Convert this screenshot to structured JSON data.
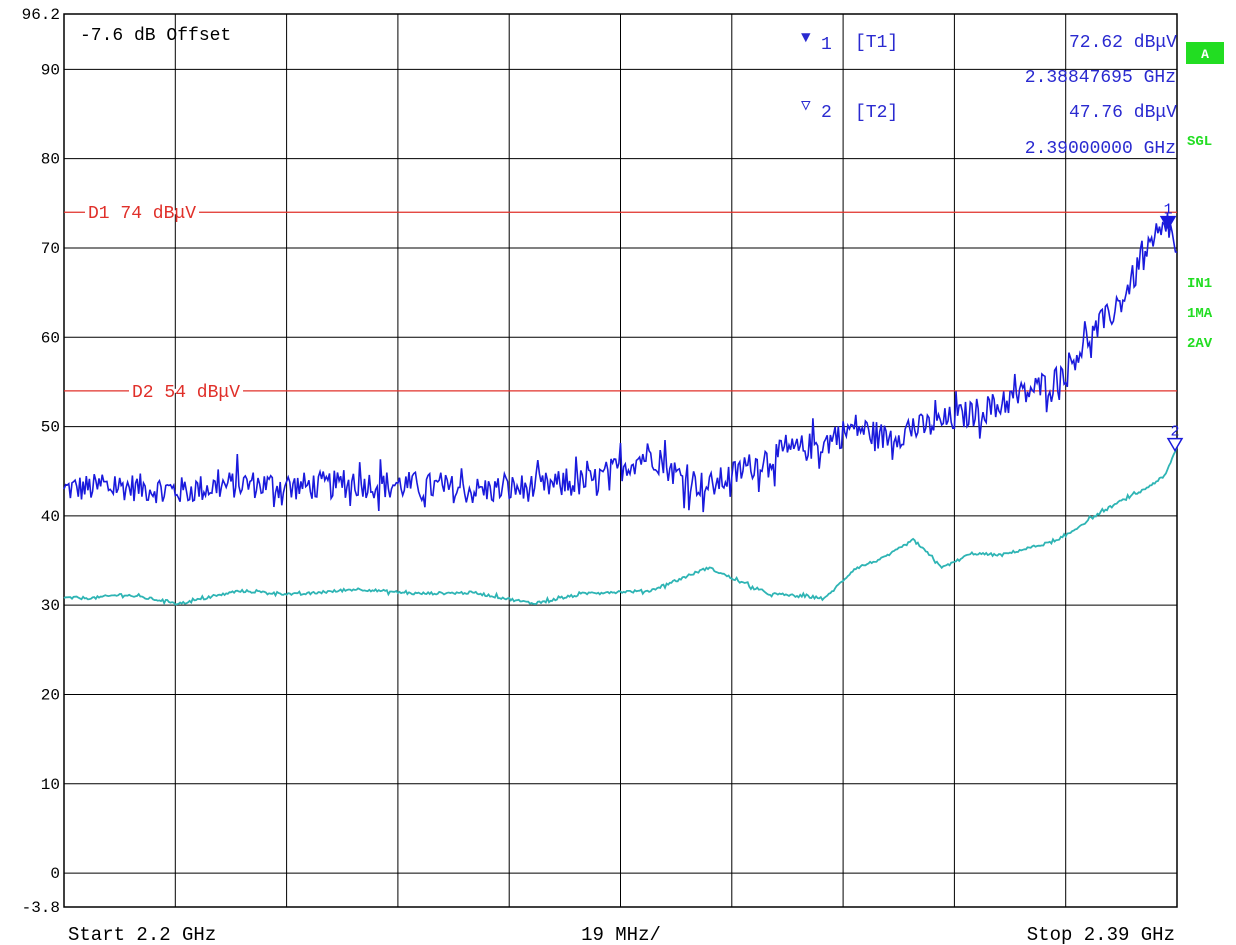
{
  "offset_label": "-7.6 dB Offset",
  "markers": [
    {
      "symbol": "▼",
      "index": "1",
      "trace": "[T1]",
      "level": "72.62 dBμV",
      "freq": "2.38847695 GHz"
    },
    {
      "symbol": "▽",
      "index": "2",
      "trace": "[T2]",
      "level": "47.76 dBμV",
      "freq": "2.39000000 GHz"
    }
  ],
  "side_labels": {
    "a": "A",
    "sgl": "SGL",
    "in1": "IN1",
    "ma": "1MA",
    "av": "2AV"
  },
  "footer": {
    "start": "Start 2.2 GHz",
    "span": "19 MHz/",
    "stop": "Stop 2.39 GHz"
  },
  "colors": {
    "trace1": "#1a1adc",
    "trace2": "#2eb4b4",
    "limit": "#e0302a",
    "side_green": "#22dd22",
    "marker_text": "#2a2ad0"
  },
  "chart_data": {
    "type": "line",
    "xlabel": "",
    "ylabel": "",
    "xlim": [
      2.2,
      2.39
    ],
    "ylim": [
      -3.8,
      96.2
    ],
    "yticks": [
      {
        "label": "96.2",
        "value": 96.2
      },
      {
        "label": "90",
        "value": 90
      },
      {
        "label": "80",
        "value": 80
      },
      {
        "label": "70",
        "value": 70
      },
      {
        "label": "60",
        "value": 60
      },
      {
        "label": "50",
        "value": 50
      },
      {
        "label": "40",
        "value": 40
      },
      {
        "label": "30",
        "value": 30
      },
      {
        "label": "20",
        "value": 20
      },
      {
        "label": "10",
        "value": 10
      },
      {
        "label": "0",
        "value": 0
      },
      {
        "label": "-3.8",
        "value": -3.8
      }
    ],
    "x_divisions": 10,
    "grid": true,
    "limit_lines": [
      {
        "label": "D1 74 dBμV",
        "value": 74
      },
      {
        "label": "D2 54 dBμV",
        "value": 54
      }
    ],
    "series": [
      {
        "x": [
          2.2,
          2.21,
          2.22,
          2.23,
          2.24,
          2.25,
          2.26,
          2.27,
          2.28,
          2.29,
          2.3,
          2.305,
          2.31,
          2.32,
          2.33,
          2.335,
          2.34,
          2.35,
          2.36,
          2.37,
          2.375,
          2.38,
          2.384,
          2.3885,
          2.39
        ],
        "values": [
          43,
          43.3,
          42.8,
          43.6,
          43.3,
          43.6,
          43.4,
          42.8,
          43.2,
          43.8,
          47,
          44.5,
          43.2,
          46.5,
          48.2,
          50,
          48.8,
          50.5,
          52.5,
          55.5,
          60,
          63.5,
          68.5,
          72.62,
          69.5
        ]
      },
      {
        "x": [
          2.2,
          2.205,
          2.21,
          2.22,
          2.23,
          2.24,
          2.25,
          2.26,
          2.27,
          2.28,
          2.29,
          2.3,
          2.31,
          2.32,
          2.33,
          2.335,
          2.34,
          2.345,
          2.35,
          2.355,
          2.36,
          2.37,
          2.375,
          2.38,
          2.384,
          2.388,
          2.39
        ],
        "values": [
          30.8,
          30.8,
          31.2,
          30.2,
          31.6,
          31.2,
          31.8,
          31.3,
          31.4,
          30.2,
          31.4,
          31.6,
          34.2,
          31.3,
          30.8,
          34.1,
          35.3,
          37.3,
          34.2,
          35.8,
          35.6,
          37.3,
          39.6,
          41.5,
          42.8,
          44.5,
          47.76
        ]
      }
    ],
    "marker_points": [
      {
        "label": "1",
        "x": 2.38847695,
        "y": 72.62
      },
      {
        "label": "2",
        "x": 2.39,
        "y": 47.76
      }
    ]
  }
}
